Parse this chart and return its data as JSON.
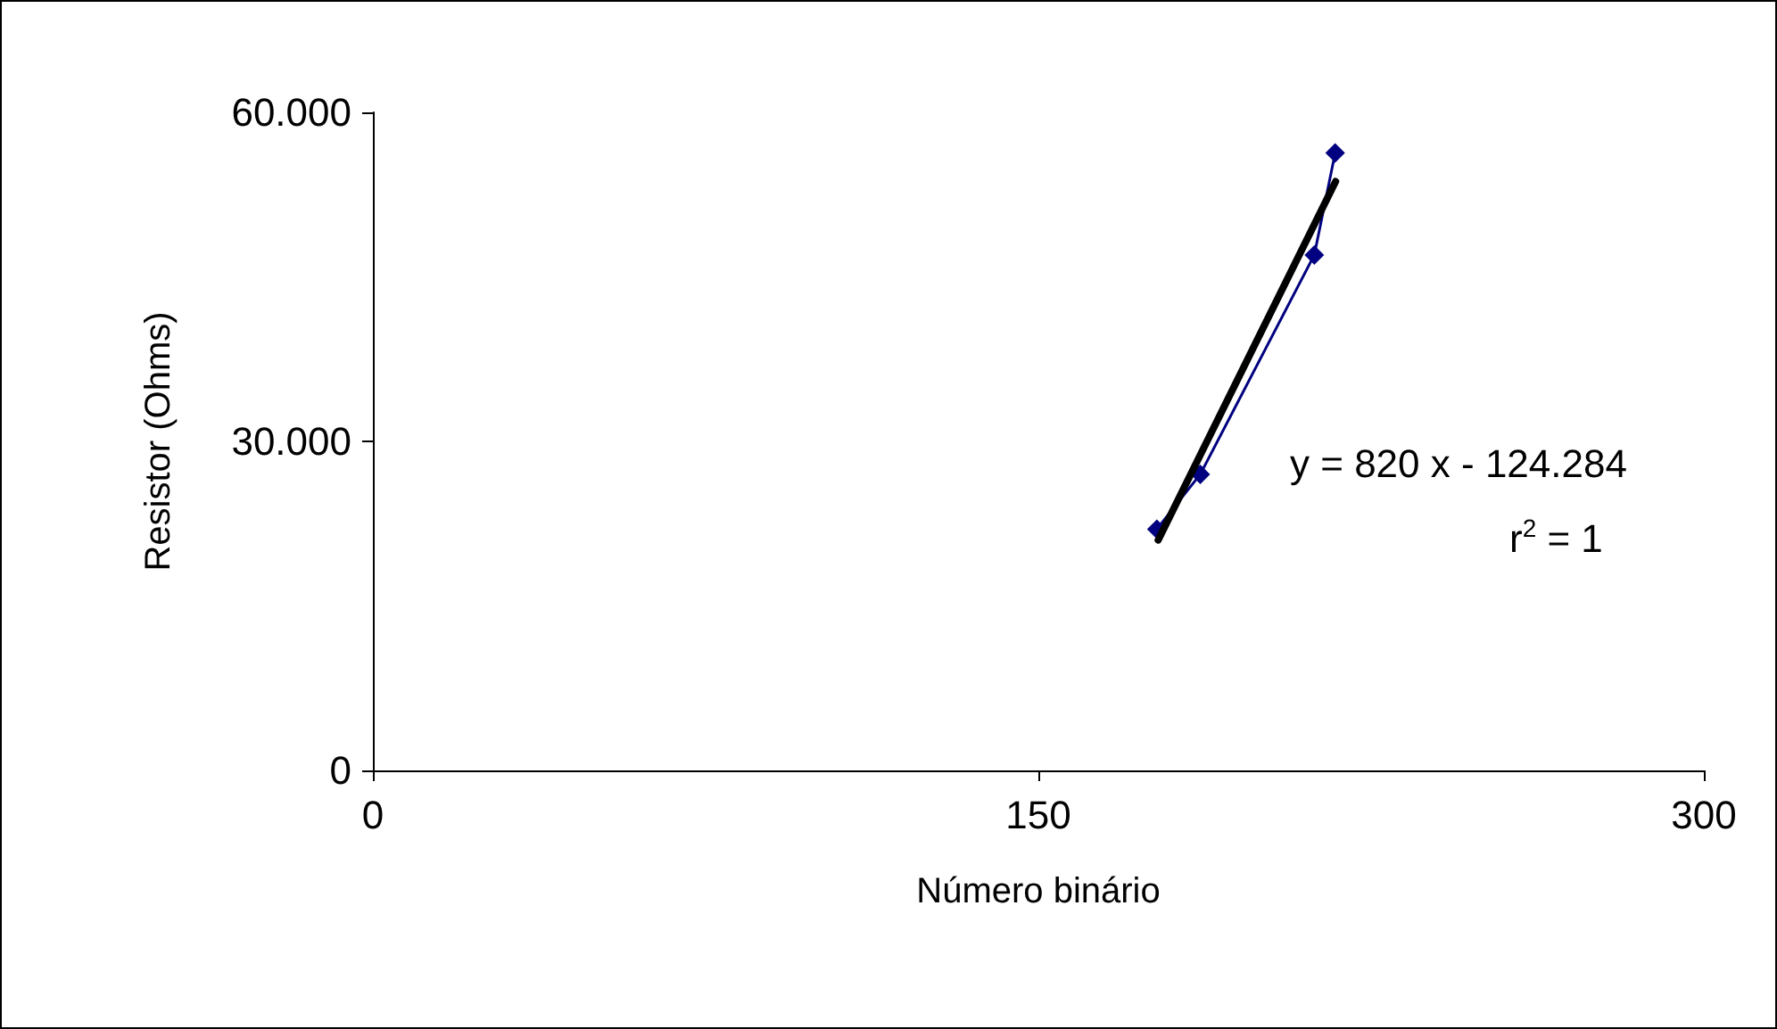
{
  "chart_data": {
    "type": "line",
    "xlabel": "Número binário",
    "ylabel": "Resistor (Ohms)",
    "xlim": [
      0,
      300
    ],
    "xticks": [
      0,
      150,
      300
    ],
    "ylim": [
      0,
      60000
    ],
    "yticks": [
      0,
      {
        "value": 30000,
        "label": "30.000"
      },
      {
        "value": 60000,
        "label": "60.000"
      }
    ],
    "series": [
      {
        "color": "#000080",
        "x": [
          176.7,
          186.5,
          212.2,
          216.9
        ],
        "values": [
          22000,
          27000,
          47000,
          56300
        ]
      },
      {
        "color": "#000000",
        "x": [
          177,
          217
        ],
        "values": [
          21000,
          53700
        ],
        "marker": "none"
      }
    ],
    "annotations": [
      "y = 820 x - 124.284",
      "r$^{2}$ = 1"
    ],
    "marker": "diamond",
    "line_style": "solid",
    "grid": false
  }
}
